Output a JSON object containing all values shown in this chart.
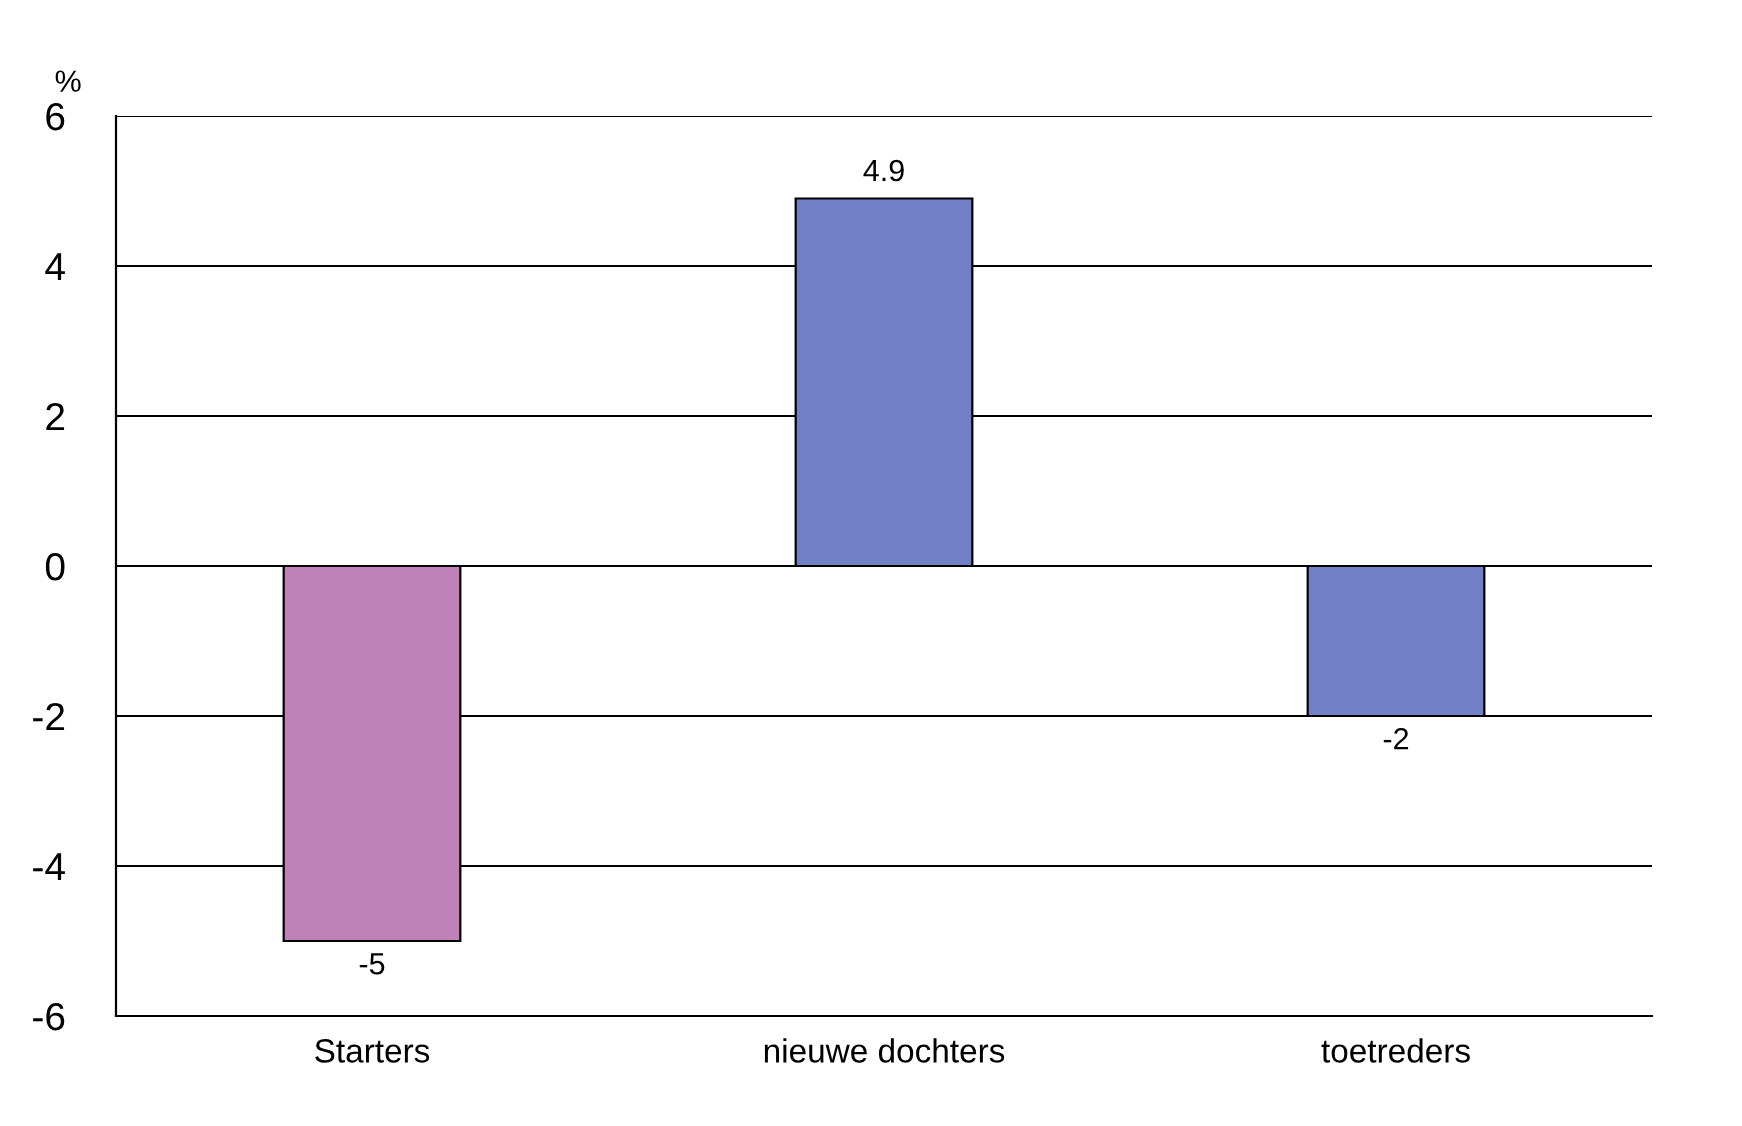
{
  "chart_data": {
    "type": "bar",
    "ylabel": "%",
    "categories": [
      "Starters",
      "nieuwe dochters",
      "toetreders"
    ],
    "values": [
      -5,
      4.9,
      -2
    ],
    "colors": [
      "#c080b8",
      "#7080c4",
      "#7080c4"
    ],
    "ylim": [
      -6,
      6
    ],
    "yticks": [
      -6,
      -4,
      -2,
      0,
      2,
      4,
      6
    ],
    "grid": "y",
    "data_labels": true
  }
}
